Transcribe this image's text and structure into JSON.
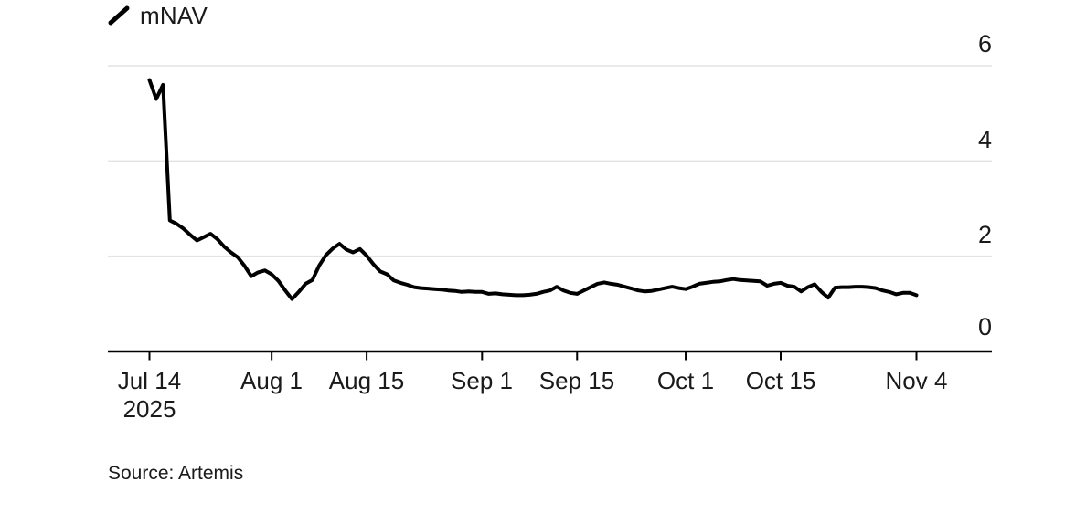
{
  "legend": {
    "label": "mNAV"
  },
  "source": {
    "text": "Source: Artemis"
  },
  "colors": {
    "line": "#000000",
    "grid": "#e3e3e3",
    "axis": "#000000",
    "text": "#1a1a1a",
    "background": "#ffffff"
  },
  "chart_data": {
    "type": "line",
    "title": "",
    "series_name": "mNAV",
    "legend_position": "top-left",
    "y_axis_side": "right",
    "grid": "horizontal",
    "ylim": [
      0,
      6
    ],
    "x_range": [
      "2025-07-14",
      "2025-11-04"
    ],
    "frequency": "daily",
    "y_ticks": [
      {
        "value": 6,
        "label": "6"
      },
      {
        "value": 4,
        "label": "4"
      },
      {
        "value": 2,
        "label": "2"
      },
      {
        "value": 0,
        "label": "0"
      }
    ],
    "x_ticks": [
      {
        "label": "Jul 14",
        "sublabel": "2025",
        "day_offset": 0
      },
      {
        "label": "Aug 1",
        "sublabel": "",
        "day_offset": 18
      },
      {
        "label": "Aug 15",
        "sublabel": "",
        "day_offset": 32
      },
      {
        "label": "Sep 1",
        "sublabel": "",
        "day_offset": 49
      },
      {
        "label": "Sep 15",
        "sublabel": "",
        "day_offset": 63
      },
      {
        "label": "Oct 1",
        "sublabel": "",
        "day_offset": 79
      },
      {
        "label": "Oct 15",
        "sublabel": "",
        "day_offset": 93
      },
      {
        "label": "Nov 4",
        "sublabel": "",
        "day_offset": 113
      }
    ],
    "dates": [
      "2025-07-14",
      "2025-07-15",
      "2025-07-16",
      "2025-07-17",
      "2025-07-18",
      "2025-07-19",
      "2025-07-20",
      "2025-07-21",
      "2025-07-22",
      "2025-07-23",
      "2025-07-24",
      "2025-07-25",
      "2025-07-26",
      "2025-07-27",
      "2025-07-28",
      "2025-07-29",
      "2025-07-30",
      "2025-07-31",
      "2025-08-01",
      "2025-08-02",
      "2025-08-03",
      "2025-08-04",
      "2025-08-05",
      "2025-08-06",
      "2025-08-07",
      "2025-08-08",
      "2025-08-09",
      "2025-08-10",
      "2025-08-11",
      "2025-08-12",
      "2025-08-13",
      "2025-08-14",
      "2025-08-15",
      "2025-08-16",
      "2025-08-17",
      "2025-08-18",
      "2025-08-19",
      "2025-08-20",
      "2025-08-21",
      "2025-08-22",
      "2025-08-23",
      "2025-08-24",
      "2025-08-25",
      "2025-08-26",
      "2025-08-27",
      "2025-08-28",
      "2025-08-29",
      "2025-08-30",
      "2025-08-31",
      "2025-09-01",
      "2025-09-02",
      "2025-09-03",
      "2025-09-04",
      "2025-09-05",
      "2025-09-06",
      "2025-09-07",
      "2025-09-08",
      "2025-09-09",
      "2025-09-10",
      "2025-09-11",
      "2025-09-12",
      "2025-09-13",
      "2025-09-14",
      "2025-09-15",
      "2025-09-16",
      "2025-09-17",
      "2025-09-18",
      "2025-09-19",
      "2025-09-20",
      "2025-09-21",
      "2025-09-22",
      "2025-09-23",
      "2025-09-24",
      "2025-09-25",
      "2025-09-26",
      "2025-09-27",
      "2025-09-28",
      "2025-09-29",
      "2025-09-30",
      "2025-10-01",
      "2025-10-02",
      "2025-10-03",
      "2025-10-04",
      "2025-10-05",
      "2025-10-06",
      "2025-10-07",
      "2025-10-08",
      "2025-10-09",
      "2025-10-10",
      "2025-10-11",
      "2025-10-12",
      "2025-10-13",
      "2025-10-14",
      "2025-10-15",
      "2025-10-16",
      "2025-10-17",
      "2025-10-18",
      "2025-10-19",
      "2025-10-20",
      "2025-10-21",
      "2025-10-22",
      "2025-10-23",
      "2025-10-24",
      "2025-10-25",
      "2025-10-26",
      "2025-10-27",
      "2025-10-28",
      "2025-10-29",
      "2025-10-30",
      "2025-10-31",
      "2025-11-01",
      "2025-11-02",
      "2025-11-03",
      "2025-11-04"
    ],
    "values": [
      5.7,
      5.3,
      5.6,
      2.75,
      2.68,
      2.58,
      2.45,
      2.33,
      2.4,
      2.47,
      2.36,
      2.2,
      2.08,
      1.98,
      1.8,
      1.58,
      1.66,
      1.7,
      1.62,
      1.48,
      1.28,
      1.1,
      1.25,
      1.42,
      1.5,
      1.8,
      2.02,
      2.16,
      2.26,
      2.14,
      2.08,
      2.15,
      2.01,
      1.83,
      1.68,
      1.62,
      1.49,
      1.44,
      1.4,
      1.35,
      1.33,
      1.32,
      1.31,
      1.3,
      1.28,
      1.27,
      1.25,
      1.26,
      1.25,
      1.25,
      1.21,
      1.22,
      1.2,
      1.19,
      1.18,
      1.18,
      1.19,
      1.21,
      1.25,
      1.28,
      1.36,
      1.28,
      1.23,
      1.21,
      1.28,
      1.35,
      1.42,
      1.45,
      1.42,
      1.4,
      1.36,
      1.32,
      1.28,
      1.26,
      1.27,
      1.3,
      1.33,
      1.36,
      1.33,
      1.31,
      1.36,
      1.42,
      1.44,
      1.46,
      1.47,
      1.5,
      1.52,
      1.5,
      1.49,
      1.48,
      1.47,
      1.38,
      1.42,
      1.44,
      1.38,
      1.36,
      1.26,
      1.35,
      1.41,
      1.25,
      1.13,
      1.34,
      1.35,
      1.35,
      1.36,
      1.36,
      1.35,
      1.33,
      1.28,
      1.25,
      1.2,
      1.23,
      1.23,
      1.18
    ]
  }
}
